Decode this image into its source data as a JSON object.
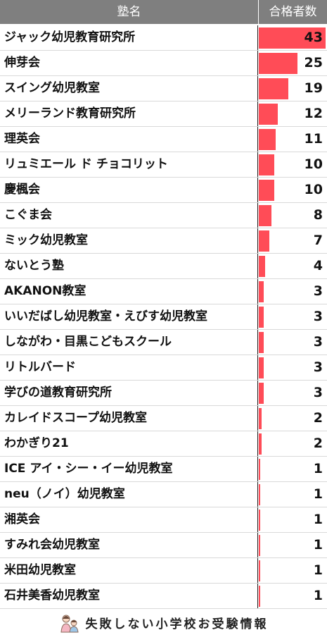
{
  "header": {
    "name_col": "塾名",
    "count_col": "合格者数"
  },
  "footer": {
    "brand": "失敗しない小学校お受験情報"
  },
  "colors": {
    "header_bg": "#7f7f7f",
    "bar": "#ff4c57"
  },
  "chart_data": {
    "type": "bar",
    "orientation": "horizontal",
    "xlim": [
      0,
      43
    ],
    "categories": [
      "ジャック幼児教育研究所",
      "伸芽会",
      "スイング幼児教室",
      "メリーランド教育研究所",
      "理英会",
      "リュミエール ド チョコリット",
      "慶楓会",
      "こぐま会",
      "ミック幼児教室",
      "ないとう塾",
      "AKANON教室",
      "いいだばし幼児教室・えびす幼児教室",
      "しながわ・目黒こどもスクール",
      "リトルバード",
      "学びの道教育研究所",
      "カレイドスコープ幼児教室",
      "わかぎり21",
      "ICE アイ・シー・イー幼児教室",
      "neu（ノイ）幼児教室",
      "湘英会",
      "すみれ会幼児教室",
      "米田幼児教室",
      "石井美香幼児教室"
    ],
    "values": [
      43,
      25,
      19,
      12,
      11,
      10,
      10,
      8,
      7,
      4,
      3,
      3,
      3,
      3,
      3,
      2,
      2,
      1,
      1,
      1,
      1,
      1,
      1
    ]
  }
}
